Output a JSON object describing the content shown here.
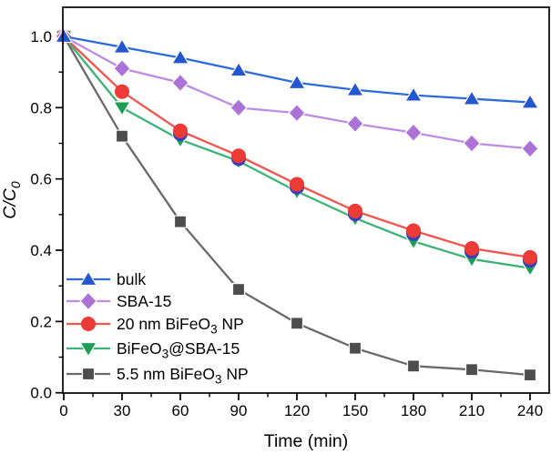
{
  "figure": {
    "background": "#ffffff",
    "frame_color": "#000000"
  },
  "chart_data": {
    "type": "line",
    "title": "",
    "xlabel": "Time (min)",
    "ylabel": "C/C0",
    "ylabel_parts": [
      {
        "t": "C/C"
      },
      {
        "t": "0",
        "sub": true
      }
    ],
    "xlim": [
      0,
      250
    ],
    "ylim": [
      0,
      1.08
    ],
    "grid": false,
    "legend_position": "lower-left",
    "x_ticks": [
      0,
      30,
      60,
      90,
      120,
      150,
      180,
      210,
      240
    ],
    "x_minor_ticks": [
      15,
      45,
      75,
      105,
      135,
      165,
      195,
      225
    ],
    "y_ticks": [
      0.0,
      0.2,
      0.4,
      0.6,
      0.8,
      1.0
    ],
    "y_tick_labels": [
      "0.0",
      "0.2",
      "0.4",
      "0.6",
      "0.8",
      "1.0"
    ],
    "y_minor_ticks": [
      0.1,
      0.3,
      0.5,
      0.7,
      0.9
    ],
    "x": [
      0,
      30,
      60,
      90,
      120,
      150,
      180,
      210,
      240
    ],
    "series": [
      {
        "name": "bulk",
        "label_parts": [
          {
            "t": "bulk"
          }
        ],
        "marker": "triangle-up",
        "line_color": "#2f6ad9",
        "marker_color": "#2457cf",
        "values": [
          1.0,
          0.97,
          0.94,
          0.905,
          0.87,
          0.85,
          0.835,
          0.825,
          0.815
        ]
      },
      {
        "name": "SBA-15",
        "label_parts": [
          {
            "t": "SBA-15"
          }
        ],
        "marker": "diamond",
        "line_color": "#bd8ce2",
        "marker_color": "#ad72d6",
        "values": [
          1.0,
          0.91,
          0.87,
          0.8,
          0.785,
          0.755,
          0.73,
          0.7,
          0.685
        ]
      },
      {
        "name": "20 nm BiFeO3 NP",
        "label_parts": [
          {
            "t": "20 nm BiFeO"
          },
          {
            "t": "3",
            "sub": true
          },
          {
            "t": " NP"
          }
        ],
        "marker": "circle",
        "line_color": "#f2544e",
        "marker_color": "#ec3a36",
        "shadow_color": "#3d3dc0",
        "shadow_from_index": 2,
        "values": [
          1.0,
          0.845,
          0.735,
          0.665,
          0.585,
          0.51,
          0.455,
          0.405,
          0.38
        ]
      },
      {
        "name": "BiFeO3@SBA-15",
        "label_parts": [
          {
            "t": "BiFeO"
          },
          {
            "t": "3",
            "sub": true
          },
          {
            "t": "@SBA-15"
          }
        ],
        "marker": "triangle-down",
        "line_color": "#3cb377",
        "marker_color": "#1e9e55",
        "values": [
          1.0,
          0.8,
          0.71,
          0.65,
          0.565,
          0.49,
          0.425,
          0.375,
          0.35
        ]
      },
      {
        "name": "5.5 nm BiFeO3 NP",
        "label_parts": [
          {
            "t": "5.5 nm BiFeO"
          },
          {
            "t": "3",
            "sub": true
          },
          {
            "t": " NP"
          }
        ],
        "marker": "square",
        "line_color": "#6a6a6a",
        "marker_color": "#4d4d4d",
        "values": [
          1.0,
          0.72,
          0.48,
          0.29,
          0.195,
          0.125,
          0.075,
          0.065,
          0.05
        ]
      }
    ]
  }
}
